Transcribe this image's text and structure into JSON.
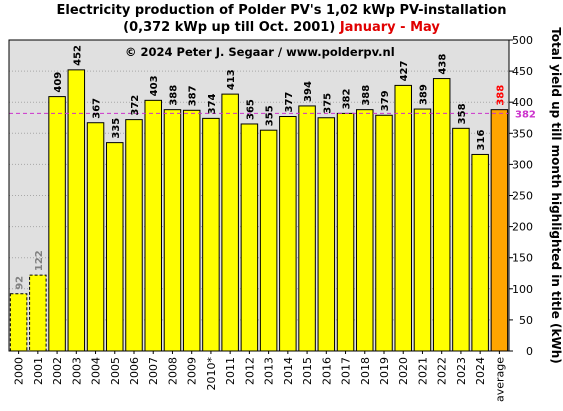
{
  "chart_data": {
    "type": "bar",
    "title": "Electricity production  of Polder  PV's  1,02 kWp PV-installation",
    "subtitle": "(0,372 kWp up till Oct. 2001)",
    "subtitle_highlight": "January - May",
    "copyright": "© 2024 Peter J. Segaar / www.polderpv.nl",
    "ylabel": "Total yield up till month highlighted in title (kWh)",
    "ylim": [
      0,
      500
    ],
    "y_ticks": [
      0,
      50,
      100,
      150,
      200,
      250,
      300,
      350,
      400,
      450,
      500
    ],
    "grid": true,
    "categories": [
      "2000",
      "2001",
      "2002",
      "2003",
      "2004",
      "2005",
      "2006",
      "2007",
      "2008",
      "2009",
      "2010*",
      "2011",
      "2012",
      "2013",
      "2014",
      "2015",
      "2016",
      "2017",
      "2018",
      "2019",
      "2020",
      "2021",
      "2022",
      "2023",
      "2024",
      "average"
    ],
    "values": [
      92,
      122,
      409,
      452,
      367,
      335,
      372,
      403,
      388,
      387,
      374,
      413,
      365,
      355,
      377,
      394,
      375,
      382,
      388,
      379,
      427,
      389,
      438,
      358,
      316,
      388
    ],
    "bar_styles": [
      "partial",
      "partial",
      "normal",
      "normal",
      "normal",
      "normal",
      "normal",
      "normal",
      "normal",
      "normal",
      "normal",
      "normal",
      "normal",
      "normal",
      "normal",
      "normal",
      "normal",
      "normal",
      "normal",
      "normal",
      "normal",
      "normal",
      "normal",
      "normal",
      "normal",
      "average"
    ],
    "average_line": 382,
    "colors": {
      "bar": "#ffff00",
      "average_bar": "#ffa500",
      "average_value_label": "#ff0000",
      "average_line": "#cc33cc",
      "partial_label": "#808080",
      "plot_background": "#e0e0e0"
    }
  }
}
